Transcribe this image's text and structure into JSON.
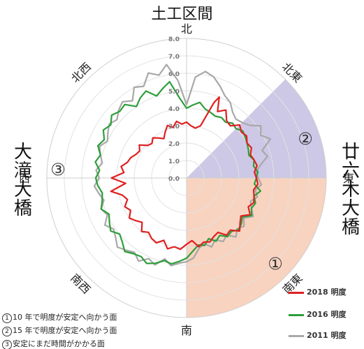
{
  "chart_data": {
    "type": "radar",
    "title": "土工区間",
    "left_label": "大滝大橋",
    "right_label": "廿六木大橋",
    "directions": [
      "北",
      "北東",
      "東",
      "南東",
      "南",
      "南西",
      "西",
      "北西"
    ],
    "r_ticks": [
      "0.0",
      "1.0",
      "2.0",
      "3.0",
      "4.0",
      "5.0",
      "6.0",
      "7.0",
      "8.0"
    ],
    "rlim": [
      0,
      8
    ],
    "sectors": [
      {
        "id": "①",
        "from_bearing": 90,
        "to_bearing": 180,
        "color": "#f8d3c0"
      },
      {
        "id": "②",
        "from_bearing": 45,
        "to_bearing": 90,
        "color": "#cdc8e6"
      },
      {
        "id": "③",
        "from_bearing": 180,
        "to_bearing": 360,
        "color": "none"
      }
    ],
    "sector_labels": [
      "①",
      "②",
      "③"
    ],
    "legend": [
      "2018 明度",
      "2016 明度",
      "2011 明度"
    ],
    "notes": [
      {
        "num": "1",
        "text": "10 年で明度が安定へ向かう面"
      },
      {
        "num": "2",
        "text": "15 年で明度が安定へ向かう面"
      },
      {
        "num": "3",
        "text": "安定にまだ時間がかかる面"
      }
    ],
    "series": [
      {
        "name": "2018 明度",
        "color": "#e02020",
        "values": [
          [
            0,
            3.2
          ],
          [
            5,
            3.0
          ],
          [
            10,
            2.9
          ],
          [
            15,
            3.1
          ],
          [
            20,
            4.6
          ],
          [
            22,
            5.0
          ],
          [
            25,
            4.2
          ],
          [
            30,
            4.5
          ],
          [
            35,
            4.0
          ],
          [
            40,
            3.9
          ],
          [
            45,
            4.3
          ],
          [
            50,
            4.1
          ],
          [
            55,
            4.2
          ],
          [
            60,
            4.0
          ],
          [
            65,
            4.1
          ],
          [
            70,
            3.9
          ],
          [
            75,
            4.0
          ],
          [
            80,
            4.1
          ],
          [
            85,
            3.9
          ],
          [
            90,
            4.0
          ],
          [
            95,
            4.1
          ],
          [
            100,
            3.9
          ],
          [
            105,
            4.0
          ],
          [
            110,
            4.1
          ],
          [
            115,
            3.9
          ],
          [
            120,
            4.2
          ],
          [
            125,
            3.8
          ],
          [
            130,
            4.0
          ],
          [
            135,
            4.3
          ],
          [
            140,
            3.9
          ],
          [
            145,
            4.0
          ],
          [
            150,
            3.6
          ],
          [
            155,
            3.7
          ],
          [
            160,
            3.9
          ],
          [
            165,
            3.8
          ],
          [
            170,
            4.0
          ],
          [
            175,
            3.6
          ],
          [
            180,
            3.8
          ],
          [
            185,
            4.1
          ],
          [
            190,
            4.0
          ],
          [
            195,
            4.2
          ],
          [
            200,
            3.8
          ],
          [
            205,
            4.1
          ],
          [
            210,
            4.0
          ],
          [
            215,
            3.8
          ],
          [
            220,
            4.0
          ],
          [
            225,
            3.6
          ],
          [
            230,
            3.8
          ],
          [
            235,
            4.0
          ],
          [
            240,
            3.7
          ],
          [
            245,
            3.9
          ],
          [
            250,
            3.6
          ],
          [
            255,
            3.8
          ],
          [
            260,
            4.4
          ],
          [
            265,
            3.5
          ],
          [
            270,
            4.3
          ],
          [
            275,
            3.6
          ],
          [
            280,
            3.8
          ],
          [
            285,
            3.5
          ],
          [
            290,
            3.4
          ],
          [
            295,
            3.2
          ],
          [
            300,
            3.1
          ],
          [
            305,
            3.3
          ],
          [
            310,
            2.9
          ],
          [
            315,
            2.8
          ],
          [
            320,
            3.0
          ],
          [
            325,
            2.8
          ],
          [
            330,
            2.6
          ],
          [
            335,
            2.9
          ],
          [
            340,
            3.2
          ],
          [
            345,
            3.0
          ],
          [
            350,
            3.3
          ],
          [
            355,
            3.1
          ]
        ]
      },
      {
        "name": "2016 明度",
        "color": "#2e9e3a",
        "values": [
          [
            0,
            4.0
          ],
          [
            5,
            4.2
          ],
          [
            10,
            4.4
          ],
          [
            15,
            4.1
          ],
          [
            20,
            4.0
          ],
          [
            25,
            3.9
          ],
          [
            30,
            4.0
          ],
          [
            35,
            3.9
          ],
          [
            40,
            4.1
          ],
          [
            45,
            4.0
          ],
          [
            50,
            4.2
          ],
          [
            55,
            4.1
          ],
          [
            60,
            4.0
          ],
          [
            65,
            3.9
          ],
          [
            70,
            3.8
          ],
          [
            75,
            4.0
          ],
          [
            80,
            3.9
          ],
          [
            85,
            4.1
          ],
          [
            90,
            4.0
          ],
          [
            95,
            3.9
          ],
          [
            100,
            4.3
          ],
          [
            105,
            4.0
          ],
          [
            110,
            4.2
          ],
          [
            115,
            4.1
          ],
          [
            120,
            4.3
          ],
          [
            125,
            3.9
          ],
          [
            130,
            4.1
          ],
          [
            135,
            4.2
          ],
          [
            140,
            4.0
          ],
          [
            145,
            4.1
          ],
          [
            150,
            3.8
          ],
          [
            155,
            4.0
          ],
          [
            160,
            3.7
          ],
          [
            165,
            4.0
          ],
          [
            170,
            3.9
          ],
          [
            175,
            4.2
          ],
          [
            180,
            4.6
          ],
          [
            185,
            4.8
          ],
          [
            190,
            5.0
          ],
          [
            195,
            4.9
          ],
          [
            200,
            5.2
          ],
          [
            205,
            5.4
          ],
          [
            210,
            5.2
          ],
          [
            215,
            5.3
          ],
          [
            220,
            5.5
          ],
          [
            225,
            5.2
          ],
          [
            230,
            5.0
          ],
          [
            235,
            5.3
          ],
          [
            240,
            5.1
          ],
          [
            245,
            4.9
          ],
          [
            250,
            5.2
          ],
          [
            255,
            5.0
          ],
          [
            260,
            4.9
          ],
          [
            265,
            5.1
          ],
          [
            270,
            5.2
          ],
          [
            275,
            5.0
          ],
          [
            280,
            5.3
          ],
          [
            285,
            5.1
          ],
          [
            290,
            5.4
          ],
          [
            295,
            5.2
          ],
          [
            300,
            5.5
          ],
          [
            305,
            5.3
          ],
          [
            310,
            5.6
          ],
          [
            315,
            5.4
          ],
          [
            320,
            5.5
          ],
          [
            325,
            5.0
          ],
          [
            330,
            5.3
          ],
          [
            335,
            5.5
          ],
          [
            340,
            5.0
          ],
          [
            345,
            5.3
          ],
          [
            350,
            5.6
          ],
          [
            355,
            4.6
          ]
        ]
      },
      {
        "name": "2011 明度",
        "color": "#a8a8a8",
        "values": [
          [
            0,
            4.2
          ],
          [
            5,
            5.8
          ],
          [
            10,
            6.2
          ],
          [
            15,
            6.0
          ],
          [
            20,
            5.6
          ],
          [
            25,
            5.2
          ],
          [
            30,
            5.0
          ],
          [
            35,
            4.6
          ],
          [
            40,
            4.4
          ],
          [
            45,
            4.5
          ],
          [
            50,
            4.7
          ],
          [
            55,
            5.2
          ],
          [
            60,
            4.9
          ],
          [
            65,
            5.3
          ],
          [
            70,
            4.6
          ],
          [
            75,
            4.8
          ],
          [
            80,
            4.3
          ],
          [
            85,
            4.0
          ],
          [
            90,
            4.1
          ],
          [
            95,
            4.3
          ],
          [
            100,
            4.0
          ],
          [
            105,
            4.2
          ],
          [
            110,
            3.9
          ],
          [
            115,
            4.1
          ],
          [
            120,
            4.4
          ],
          [
            125,
            4.0
          ],
          [
            130,
            4.3
          ],
          [
            135,
            4.1
          ],
          [
            140,
            4.4
          ],
          [
            145,
            4.0
          ],
          [
            150,
            4.2
          ],
          [
            155,
            3.9
          ],
          [
            160,
            4.2
          ],
          [
            165,
            3.9
          ],
          [
            170,
            4.1
          ],
          [
            175,
            4.6
          ],
          [
            180,
            4.8
          ],
          [
            185,
            4.9
          ],
          [
            190,
            5.1
          ],
          [
            195,
            4.8
          ],
          [
            200,
            5.3
          ],
          [
            205,
            5.1
          ],
          [
            210,
            5.5
          ],
          [
            215,
            5.2
          ],
          [
            220,
            5.4
          ],
          [
            225,
            5.6
          ],
          [
            230,
            5.3
          ],
          [
            235,
            5.1
          ],
          [
            240,
            5.4
          ],
          [
            245,
            5.0
          ],
          [
            250,
            5.2
          ],
          [
            255,
            4.9
          ],
          [
            260,
            5.1
          ],
          [
            265,
            5.3
          ],
          [
            270,
            5.0
          ],
          [
            275,
            5.2
          ],
          [
            280,
            4.9
          ],
          [
            285,
            5.1
          ],
          [
            290,
            5.3
          ],
          [
            295,
            5.0
          ],
          [
            300,
            5.2
          ],
          [
            305,
            5.4
          ],
          [
            310,
            5.2
          ],
          [
            315,
            5.5
          ],
          [
            320,
            5.7
          ],
          [
            325,
            5.4
          ],
          [
            330,
            6.0
          ],
          [
            335,
            5.8
          ],
          [
            340,
            6.4
          ],
          [
            345,
            6.1
          ],
          [
            350,
            6.6
          ],
          [
            355,
            5.6
          ]
        ]
      }
    ]
  }
}
